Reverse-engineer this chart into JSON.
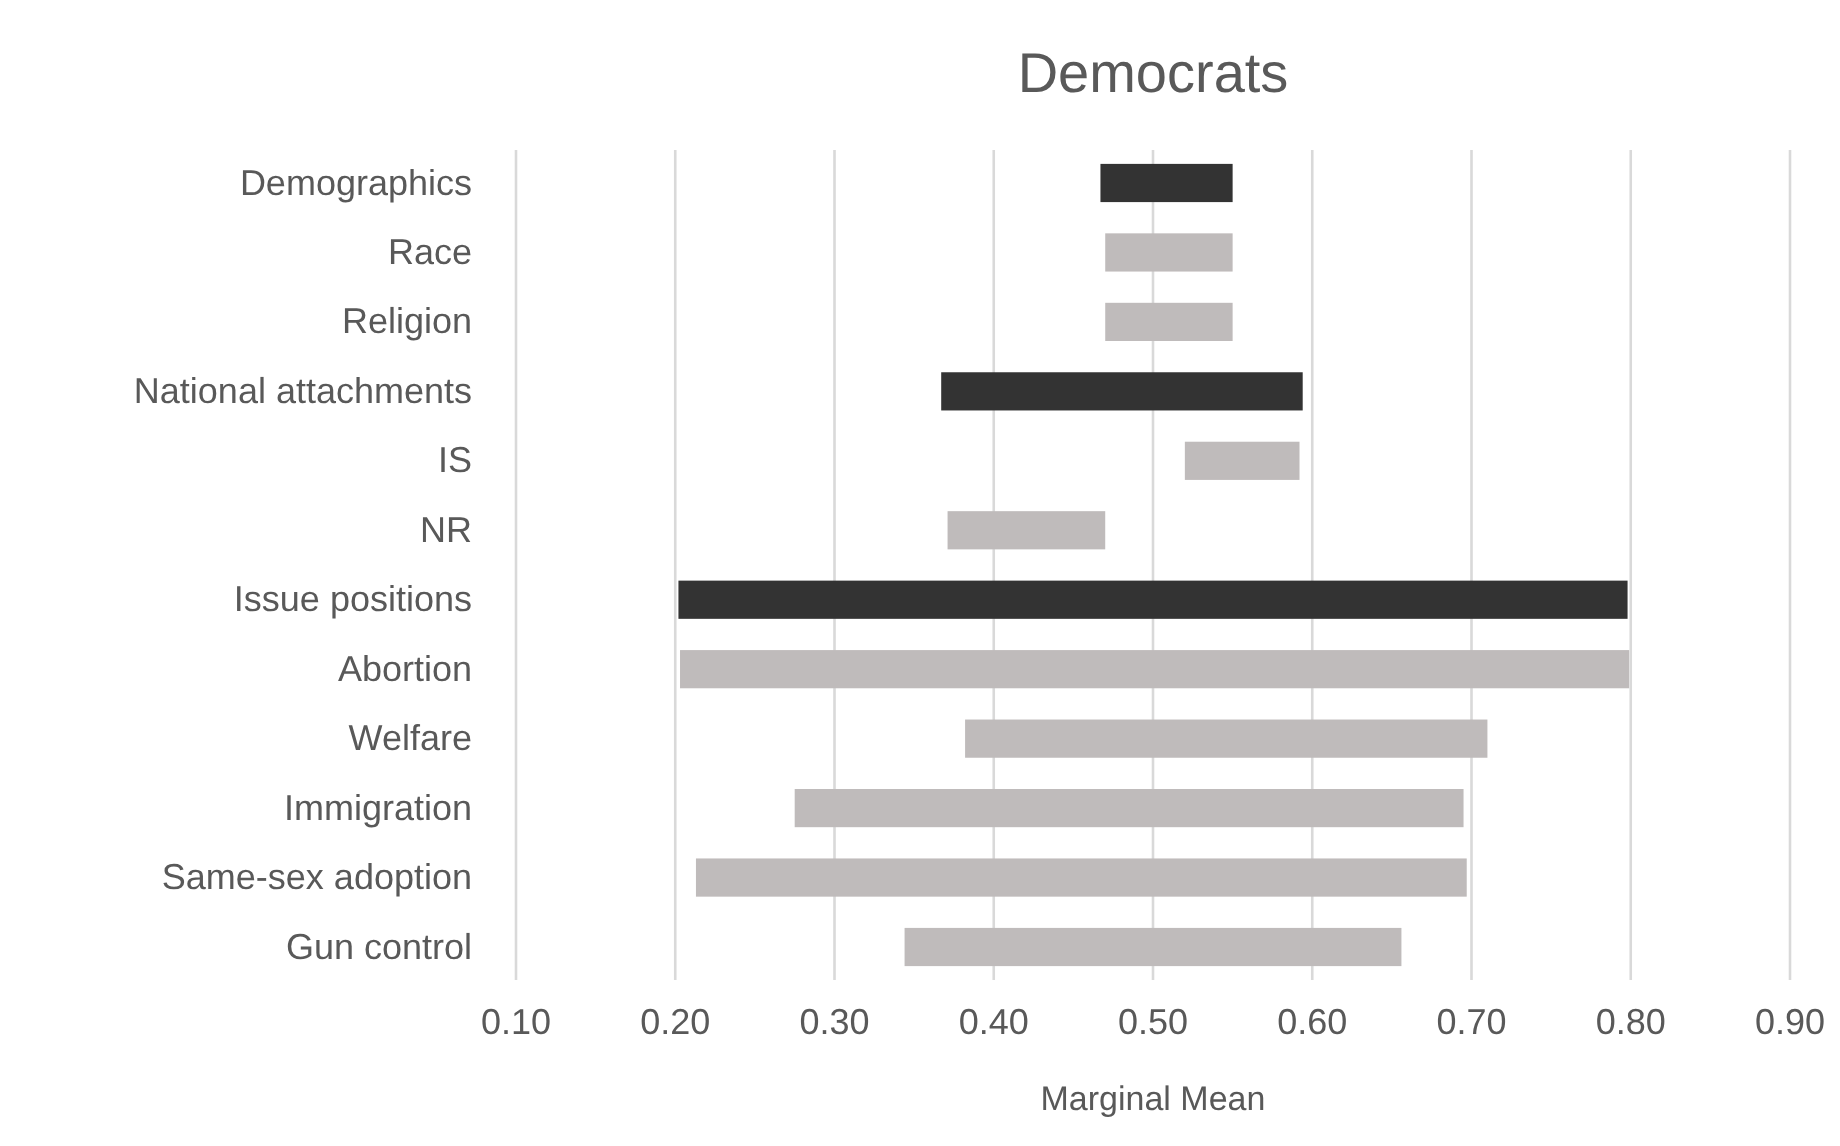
{
  "chart_data": {
    "type": "bar",
    "orientation": "horizontal",
    "title": "Democrats",
    "xlabel": "Marginal Mean",
    "categories": [
      "Demographics",
      "Race",
      "Religion",
      "National attachments",
      "IS",
      "NR",
      "Issue positions",
      "Abortion",
      "Welfare",
      "Immigration",
      "Same-sex adoption",
      "Gun control"
    ],
    "base": [
      0.467,
      0.47,
      0.47,
      0.367,
      0.52,
      0.371,
      0.202,
      0.203,
      0.382,
      0.275,
      0.213,
      0.344
    ],
    "values": [
      0.083,
      0.08,
      0.08,
      0.227,
      0.072,
      0.099,
      0.596,
      0.596,
      0.328,
      0.42,
      0.484,
      0.312
    ],
    "colors": [
      "#333333",
      "#bfbbbb",
      "#bfbbbb",
      "#333333",
      "#bfbbbb",
      "#bfbbbb",
      "#333333",
      "#bfbbbb",
      "#bfbbbb",
      "#bfbbbb",
      "#bfbbbb",
      "#bfbbbb"
    ],
    "xlim": [
      0.1,
      0.9
    ],
    "xticks": [
      {
        "value": 0.1,
        "label": "0.10"
      },
      {
        "value": 0.2,
        "label": "0.20"
      },
      {
        "value": 0.3,
        "label": "0.30"
      },
      {
        "value": 0.4,
        "label": "0.40"
      },
      {
        "value": 0.5,
        "label": "0.50"
      },
      {
        "value": 0.6,
        "label": "0.60"
      },
      {
        "value": 0.7,
        "label": "0.70"
      },
      {
        "value": 0.8,
        "label": "0.80"
      },
      {
        "value": 0.9,
        "label": "0.90"
      }
    ],
    "grid": "x"
  }
}
